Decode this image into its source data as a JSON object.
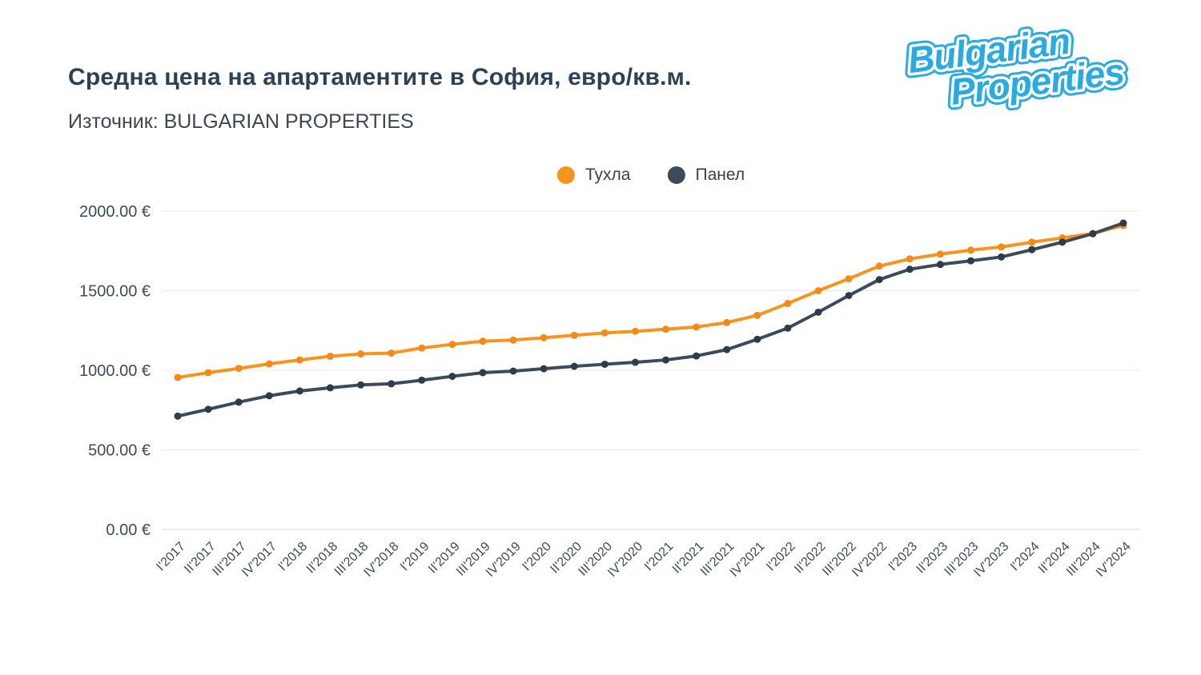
{
  "header": {
    "title": "Средна цена на апартаментите в София, евро/кв.м.",
    "subtitle": "Източник: BULGARIAN PROPERTIES"
  },
  "logo": {
    "line1": "Bulgarian",
    "line2": "Properties",
    "color": "#29abe2"
  },
  "chart_data": {
    "type": "line",
    "title": "Средна цена на апартаментите в София, евро/кв.м.",
    "source": "BULGARIAN PROPERTIES",
    "x": [
      "I'2017",
      "II'2017",
      "III'2017",
      "IV'2017",
      "I'2018",
      "II'2018",
      "III'2018",
      "IV'2018",
      "I'2019",
      "II'2019",
      "III'2019",
      "IV'2019",
      "I'2020",
      "II'2020",
      "III'2020",
      "IV'2020",
      "I'2021",
      "II'2021",
      "III'2021",
      "IV'2021",
      "I'2022",
      "II'2022",
      "III'2022",
      "IV'2022",
      "I'2023",
      "II'2023",
      "III'2023",
      "IV'2023",
      "I'2024",
      "II'2024",
      "III'2024",
      "IV'2024"
    ],
    "series": [
      {
        "name": "Тухла",
        "color": "#f8941e",
        "marker_color": "#f58b16",
        "values": [
          955,
          985,
          1012,
          1040,
          1065,
          1088,
          1103,
          1108,
          1140,
          1163,
          1183,
          1190,
          1205,
          1220,
          1235,
          1245,
          1258,
          1272,
          1300,
          1345,
          1420,
          1500,
          1575,
          1655,
          1700,
          1730,
          1755,
          1775,
          1805,
          1832,
          1860,
          1910
        ]
      },
      {
        "name": "Панел",
        "color": "#3c4a59",
        "marker_color": "#2d3b4b",
        "values": [
          712,
          755,
          800,
          840,
          870,
          890,
          908,
          915,
          938,
          962,
          985,
          995,
          1010,
          1025,
          1038,
          1050,
          1065,
          1090,
          1130,
          1195,
          1265,
          1365,
          1470,
          1570,
          1635,
          1665,
          1688,
          1712,
          1758,
          1805,
          1858,
          1925
        ]
      }
    ],
    "ylim": [
      0,
      2000
    ],
    "yticks": [
      0,
      500,
      1000,
      1500,
      2000
    ],
    "ytick_labels": [
      "0.00 €",
      "500.00 €",
      "1000.00 €",
      "1500.00 €",
      "2000.00 €"
    ],
    "grid": "horizontal",
    "legend_position": "top-center",
    "gridline_color": "#e8eaec",
    "baseline_color": "#d4d9dd"
  }
}
